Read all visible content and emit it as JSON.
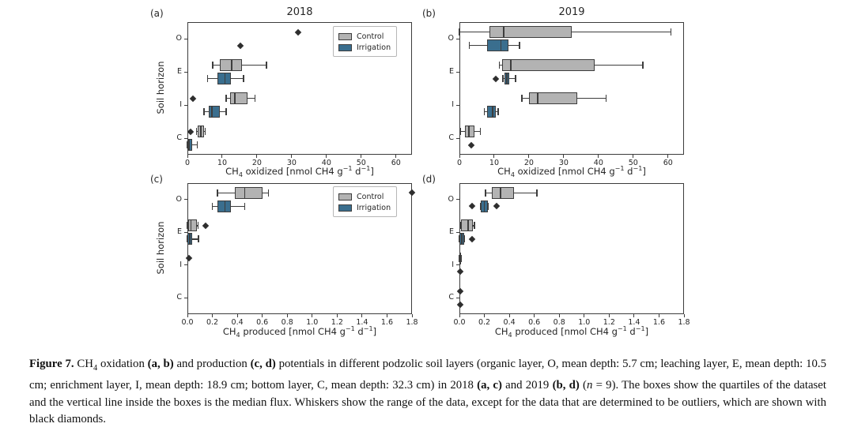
{
  "chart_data": {
    "type": "boxplot-grid",
    "orientation": "horizontal",
    "colors": {
      "control": "#b3b3b3",
      "irrigation": "#3a6e8e",
      "edge": "#3d3d3d",
      "outlier": "#2e2e2e"
    },
    "panels": [
      {
        "id": "a",
        "label": "(a)",
        "title": "2018",
        "ylabel": "Soil horizon",
        "yticks": [
          "O",
          "E",
          "I",
          "C"
        ],
        "xlim": [
          0,
          64.6
        ],
        "xticks": [
          0,
          10,
          20,
          30,
          40,
          50,
          60
        ],
        "xtick_labels": [
          "0",
          "10",
          "20",
          "30",
          "40",
          "50",
          "60"
        ],
        "xlabel_segments": [
          {
            "t": "CH"
          },
          {
            "t": "4",
            "sub": true
          },
          {
            "t": " oxidized [nmol CH4 g"
          },
          {
            "t": "−1",
            "sup": true
          },
          {
            "t": " d"
          },
          {
            "t": "−1",
            "sup": true
          },
          {
            "t": "]"
          }
        ],
        "legend": [
          "Control",
          "Irrigation"
        ],
        "rows": [
          {
            "horizon": "O",
            "group": "Control",
            "outliers": [
              31.8
            ]
          },
          {
            "horizon": "O",
            "group": "Irrigation",
            "outliers": [
              15.2
            ]
          },
          {
            "horizon": "E",
            "group": "Control",
            "q1": 9.4,
            "median": 12.7,
            "q3": 15.8,
            "wlo": 7.3,
            "whi": 22.7
          },
          {
            "horizon": "E",
            "group": "Irrigation",
            "q1": 8.6,
            "median": 10.8,
            "q3": 12.4,
            "wlo": 5.8,
            "whi": 16.2
          },
          {
            "horizon": "I",
            "group": "Control",
            "q1": 12.2,
            "median": 13.6,
            "q3": 17.4,
            "wlo": 11.1,
            "whi": 19.4,
            "outliers": [
              1.6
            ]
          },
          {
            "horizon": "I",
            "group": "Irrigation",
            "q1": 6.1,
            "median": 7.0,
            "q3": 9.3,
            "wlo": 4.8,
            "whi": 11.2
          },
          {
            "horizon": "C",
            "group": "Control",
            "q1": 2.9,
            "median": 3.9,
            "q3": 4.8,
            "wlo": 2.6,
            "whi": 5.1,
            "outliers": [
              1.0
            ]
          },
          {
            "horizon": "C",
            "group": "Irrigation",
            "q1": 0.05,
            "median": 0.5,
            "q3": 1.4,
            "wlo": 0.0,
            "whi": 2.9
          }
        ]
      },
      {
        "id": "b",
        "label": "(b)",
        "title": "2019",
        "ylabel": null,
        "yticks": [
          "O",
          "E",
          "I",
          "C"
        ],
        "xlim": [
          0,
          64.6
        ],
        "xticks": [
          0,
          10,
          20,
          30,
          40,
          50,
          60
        ],
        "xtick_labels": [
          "0",
          "10",
          "20",
          "30",
          "40",
          "50",
          "60"
        ],
        "xlabel_segments": [
          {
            "t": "CH"
          },
          {
            "t": "4",
            "sub": true
          },
          {
            "t": " oxidized [nmol CH4 g"
          },
          {
            "t": "−1",
            "sup": true
          },
          {
            "t": " d"
          },
          {
            "t": "−1",
            "sup": true
          },
          {
            "t": "]"
          }
        ],
        "legend": null,
        "rows": [
          {
            "horizon": "O",
            "group": "Control",
            "q1": 8.7,
            "median": 12.7,
            "q3": 32.3,
            "wlo": 0.0,
            "whi": 60.8
          },
          {
            "horizon": "O",
            "group": "Irrigation",
            "q1": 8.0,
            "median": 11.9,
            "q3": 14.2,
            "wlo": 2.8,
            "whi": 17.3
          },
          {
            "horizon": "E",
            "group": "Control",
            "q1": 12.3,
            "median": 14.8,
            "q3": 38.8,
            "wlo": 11.5,
            "whi": 52.8
          },
          {
            "horizon": "E",
            "group": "Irrigation",
            "q1": 12.9,
            "median": 13.6,
            "q3": 14.3,
            "wlo": 12.5,
            "whi": 16.1,
            "outliers": [
              10.4
            ]
          },
          {
            "horizon": "I",
            "group": "Control",
            "q1": 20.1,
            "median": 22.5,
            "q3": 34.0,
            "wlo": 18.0,
            "whi": 42.2
          },
          {
            "horizon": "I",
            "group": "Irrigation",
            "q1": 8.0,
            "median": 9.5,
            "q3": 10.5,
            "wlo": 7.2,
            "whi": 11.1
          },
          {
            "horizon": "C",
            "group": "Control",
            "q1": 1.7,
            "median": 2.7,
            "q3": 4.3,
            "wlo": 0.3,
            "whi": 6.0
          },
          {
            "horizon": "C",
            "group": "Irrigation",
            "outliers": [
              3.4
            ]
          }
        ]
      },
      {
        "id": "c",
        "label": "(c)",
        "title": null,
        "ylabel": "Soil horizon",
        "yticks": [
          "O",
          "E",
          "I",
          "C"
        ],
        "xlim": [
          0,
          1.8
        ],
        "xticks": [
          0.0,
          0.2,
          0.4,
          0.6,
          0.8,
          1.0,
          1.2,
          1.4,
          1.6,
          1.8
        ],
        "xtick_labels": [
          "0.0",
          "0.2",
          "0.4",
          "0.6",
          "0.8",
          "1.0",
          "1.2",
          "1.4",
          "1.6",
          "1.8"
        ],
        "xlabel_segments": [
          {
            "t": "CH"
          },
          {
            "t": "4",
            "sub": true
          },
          {
            "t": " produced [nmol CH4 g"
          },
          {
            "t": "−1",
            "sup": true
          },
          {
            "t": " d"
          },
          {
            "t": "−1",
            "sup": true
          },
          {
            "t": "]"
          }
        ],
        "legend": [
          "Control",
          "Irrigation"
        ],
        "rows": [
          {
            "horizon": "O",
            "group": "Control",
            "q1": 0.38,
            "median": 0.46,
            "q3": 0.6,
            "wlo": 0.24,
            "whi": 0.65,
            "outliers": [
              1.8
            ]
          },
          {
            "horizon": "O",
            "group": "Irrigation",
            "q1": 0.24,
            "median": 0.3,
            "q3": 0.35,
            "wlo": 0.2,
            "whi": 0.46
          },
          {
            "horizon": "E",
            "group": "Control",
            "q1": 0.005,
            "median": 0.03,
            "q3": 0.075,
            "wlo": 0.0,
            "whi": 0.085,
            "outliers": [
              0.145
            ]
          },
          {
            "horizon": "E",
            "group": "Irrigation",
            "q1": 0.0,
            "median": 0.02,
            "q3": 0.04,
            "wlo": 0.0,
            "whi": 0.09
          },
          {
            "horizon": "I",
            "group": "Control",
            "outliers": [
              0.01
            ]
          },
          {
            "horizon": "I",
            "group": "Irrigation"
          },
          {
            "horizon": "C",
            "group": "Control"
          },
          {
            "horizon": "C",
            "group": "Irrigation"
          }
        ]
      },
      {
        "id": "d",
        "label": "(d)",
        "title": null,
        "ylabel": null,
        "yticks": [
          "O",
          "E",
          "I",
          "C"
        ],
        "xlim": [
          0,
          1.8
        ],
        "xticks": [
          0.0,
          0.2,
          0.4,
          0.6,
          0.8,
          1.0,
          1.2,
          1.4,
          1.6,
          1.8
        ],
        "xtick_labels": [
          "0.0",
          "0.2",
          "0.4",
          "0.6",
          "0.8",
          "1.0",
          "1.2",
          "1.4",
          "1.6",
          "1.8"
        ],
        "xlabel_segments": [
          {
            "t": "CH"
          },
          {
            "t": "4",
            "sub": true
          },
          {
            "t": " produced [nmol CH4 g"
          },
          {
            "t": "−1",
            "sup": true
          },
          {
            "t": " d"
          },
          {
            "t": "−1",
            "sup": true
          },
          {
            "t": "]"
          }
        ],
        "legend": null,
        "rows": [
          {
            "horizon": "O",
            "group": "Control",
            "q1": 0.26,
            "median": 0.33,
            "q3": 0.44,
            "wlo": 0.21,
            "whi": 0.62
          },
          {
            "horizon": "O",
            "group": "Irrigation",
            "q1": 0.17,
            "median": 0.2,
            "q3": 0.23,
            "wlo": 0.17,
            "whi": 0.23,
            "outliers": [
              0.1,
              0.3
            ]
          },
          {
            "horizon": "E",
            "group": "Control",
            "q1": 0.015,
            "median": 0.07,
            "q3": 0.105,
            "wlo": 0.01,
            "whi": 0.12
          },
          {
            "horizon": "E",
            "group": "Irrigation",
            "q1": 0.0,
            "median": 0.02,
            "q3": 0.035,
            "wlo": 0.0,
            "whi": 0.04,
            "outliers": [
              0.1
            ]
          },
          {
            "horizon": "I",
            "group": "Control",
            "q1": 0.0,
            "q3": 0.012,
            "wlo": 0.0,
            "whi": 0.015
          },
          {
            "horizon": "I",
            "group": "Irrigation",
            "outliers": [
              0.005
            ]
          },
          {
            "horizon": "C",
            "group": "Control",
            "outliers": [
              0.005
            ]
          },
          {
            "horizon": "C",
            "group": "Irrigation",
            "outliers": [
              0.005
            ]
          }
        ]
      }
    ]
  },
  "caption": {
    "segments": [
      {
        "t": "Figure 7.",
        "b": true
      },
      {
        "t": " CH"
      },
      {
        "t": "4",
        "sub": true
      },
      {
        "t": " oxidation "
      },
      {
        "t": "(a, b)",
        "b": true
      },
      {
        "t": " and production "
      },
      {
        "t": "(c, d)",
        "b": true
      },
      {
        "t": " potentials in different podzolic soil layers (organic layer, O, mean depth: 5.7 cm; leaching layer, E, mean depth: 10.5 cm; enrichment layer, I, mean depth: 18.9 cm; bottom layer, C, mean depth: 32.3 cm) in 2018 "
      },
      {
        "t": "(a, c)",
        "b": true
      },
      {
        "t": " and 2019 "
      },
      {
        "t": "(b, d)",
        "b": true
      },
      {
        "t": " ("
      },
      {
        "t": "n",
        "i": true
      },
      {
        "t": " = 9). The boxes show the quartiles of the dataset and the vertical line inside the boxes is the median flux. Whiskers show the range of the data, except for the data that are determined to be outliers, which are shown with black diamonds."
      }
    ]
  }
}
